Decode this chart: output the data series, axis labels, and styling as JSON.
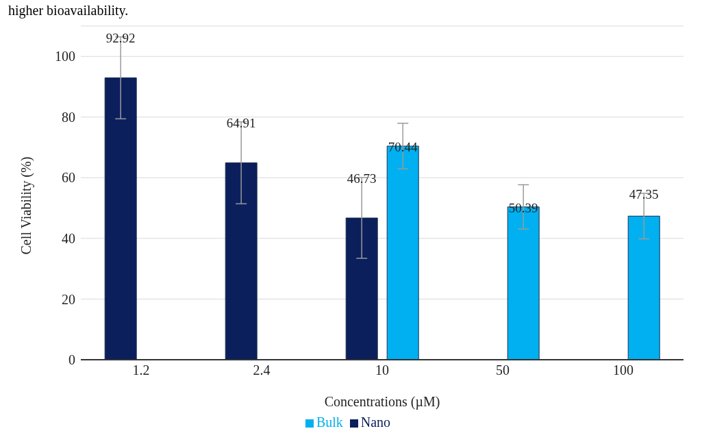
{
  "chart_data": {
    "type": "bar",
    "xlabel": "Concentrations (µM)",
    "ylabel": "Cell Viability (%)",
    "annotations": [
      "higher bioavailability."
    ],
    "categories": [
      "1.2",
      "2.4",
      "10",
      "50",
      "100"
    ],
    "series": [
      {
        "name": "Nano",
        "color": "#0b1f5c",
        "values": [
          92.92,
          64.91,
          46.73,
          null,
          null
        ],
        "errors": [
          13.5,
          13.5,
          13.3,
          null,
          null
        ]
      },
      {
        "name": "Bulk",
        "color": "#00b0f0",
        "values": [
          null,
          null,
          70.44,
          50.39,
          47.35
        ],
        "errors": [
          null,
          null,
          7.5,
          7.3,
          7.5
        ]
      }
    ],
    "ylim": [
      0,
      110
    ],
    "yticks": [
      0,
      20,
      40,
      60,
      80,
      100
    ],
    "grid": "y",
    "legend": "bottom",
    "data_labels": true
  }
}
